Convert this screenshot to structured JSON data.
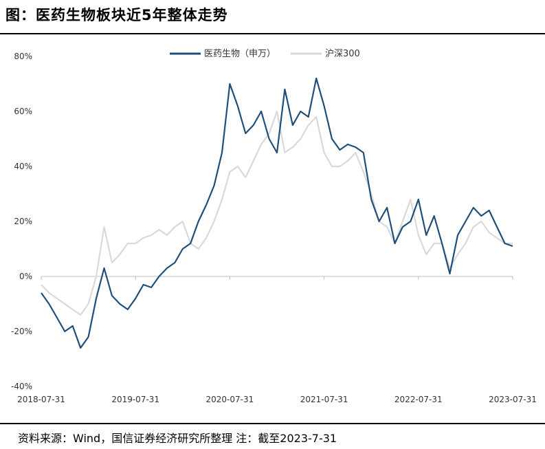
{
  "header": {
    "title": "图：医药生物板块近5年整体走势"
  },
  "footer": {
    "source": "资料来源：Wind，国信证券经济研究所整理 注：截至2023-7-31"
  },
  "colors": {
    "series1": "#1f4e79",
    "series2": "#d9d9d9",
    "axis": "#bfbfbf"
  },
  "chart_data": {
    "type": "line",
    "title": "医药生物板块近5年整体走势",
    "xlabel": "",
    "ylabel": "",
    "x_ticks": [
      "2018-07-31",
      "2019-07-31",
      "2020-07-31",
      "2021-07-31",
      "2022-07-31",
      "2023-07-31"
    ],
    "y_ticks": [
      "80%",
      "60%",
      "40%",
      "20%",
      "0%",
      "-20%",
      "-40%"
    ],
    "ylim": [
      -40,
      80
    ],
    "xlim": [
      0,
      60
    ],
    "x_unit": "months since 2018-07-31",
    "legend_position": "top-center",
    "grid": false,
    "series": [
      {
        "name": "医药生物（申万）",
        "x": [
          0,
          1,
          2,
          3,
          4,
          5,
          6,
          7,
          8,
          9,
          10,
          11,
          12,
          13,
          14,
          15,
          16,
          17,
          18,
          19,
          20,
          21,
          22,
          23,
          24,
          25,
          26,
          27,
          28,
          29,
          30,
          31,
          32,
          33,
          34,
          35,
          36,
          37,
          38,
          39,
          40,
          41,
          42,
          43,
          44,
          45,
          46,
          47,
          48,
          49,
          50,
          51,
          52,
          53,
          54,
          55,
          56,
          57,
          58,
          59,
          60
        ],
        "values": [
          -6,
          -10,
          -15,
          -20,
          -18,
          -26,
          -22,
          -8,
          3,
          -7,
          -10,
          -12,
          -8,
          -3,
          -4,
          0,
          3,
          5,
          10,
          12,
          20,
          26,
          33,
          45,
          70,
          62,
          52,
          55,
          60,
          50,
          45,
          68,
          55,
          60,
          58,
          72,
          62,
          50,
          46,
          48,
          47,
          45,
          28,
          20,
          25,
          12,
          18,
          20,
          28,
          15,
          22,
          12,
          1,
          15,
          20,
          25,
          22,
          24,
          18,
          12,
          11
        ]
      },
      {
        "name": "沪深300",
        "x": [
          0,
          1,
          2,
          3,
          4,
          5,
          6,
          7,
          8,
          9,
          10,
          11,
          12,
          13,
          14,
          15,
          16,
          17,
          18,
          19,
          20,
          21,
          22,
          23,
          24,
          25,
          26,
          27,
          28,
          29,
          30,
          31,
          32,
          33,
          34,
          35,
          36,
          37,
          38,
          39,
          40,
          41,
          42,
          43,
          44,
          45,
          46,
          47,
          48,
          49,
          50,
          51,
          52,
          53,
          54,
          55,
          56,
          57,
          58,
          59,
          60
        ],
        "values": [
          -3,
          -6,
          -8,
          -10,
          -12,
          -14,
          -10,
          0,
          18,
          5,
          8,
          12,
          12,
          14,
          15,
          17,
          15,
          18,
          20,
          12,
          10,
          14,
          20,
          28,
          38,
          40,
          36,
          42,
          48,
          52,
          60,
          45,
          47,
          50,
          55,
          58,
          45,
          40,
          40,
          42,
          45,
          38,
          30,
          20,
          18,
          12,
          20,
          28,
          15,
          8,
          12,
          12,
          3,
          8,
          12,
          18,
          20,
          16,
          14,
          12,
          12
        ]
      }
    ]
  }
}
